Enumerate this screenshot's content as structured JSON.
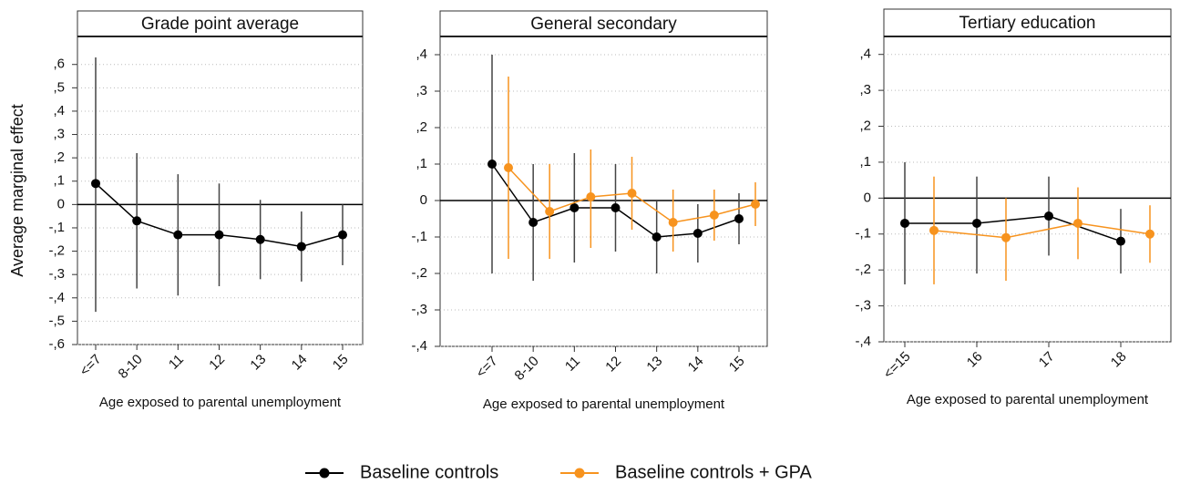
{
  "chart_data": [
    {
      "type": "errorbar",
      "title": "Grade point average",
      "ylabel": "Average marginal effect",
      "xlabel": "Age exposed to parental unemployment",
      "categories": [
        "<=7",
        "8-10",
        "11",
        "12",
        "13",
        "14",
        "15"
      ],
      "series": [
        {
          "name": "Baseline controls",
          "color": "#000000",
          "values": [
            0.09,
            -0.07,
            -0.13,
            -0.13,
            -0.15,
            -0.18,
            -0.13
          ],
          "lower": [
            -0.46,
            -0.36,
            -0.39,
            -0.35,
            -0.32,
            -0.33,
            -0.26
          ],
          "upper": [
            0.63,
            0.22,
            0.13,
            0.09,
            0.02,
            -0.03,
            0.0
          ]
        }
      ],
      "ylim": [
        -0.6,
        0.72
      ],
      "yticks": [
        {
          "value": -0.6,
          "label": "-,6"
        },
        {
          "value": -0.5,
          "label": "-,5"
        },
        {
          "value": -0.4,
          "label": "-,4"
        },
        {
          "value": -0.3,
          "label": "-,3"
        },
        {
          "value": -0.2,
          "label": "-,2"
        },
        {
          "value": -0.1,
          "label": "-,1"
        },
        0,
        {
          "value": 0.1,
          "label": ",1"
        },
        {
          "value": 0.2,
          "label": ",2"
        },
        {
          "value": 0.3,
          "label": ",3"
        },
        {
          "value": 0.4,
          "label": ",4"
        },
        {
          "value": 0.5,
          "label": ",5"
        },
        {
          "value": 0.6,
          "label": ",6"
        }
      ],
      "grid": true
    },
    {
      "type": "errorbar",
      "title": "General secondary",
      "xlabel": "Age exposed to parental unemployment",
      "categories": [
        "<=7",
        "8-10",
        "11",
        "12",
        "13",
        "14",
        "15"
      ],
      "series": [
        {
          "name": "Baseline controls",
          "color": "#000000",
          "values": [
            0.1,
            -0.06,
            -0.02,
            -0.02,
            -0.1,
            -0.09,
            -0.05
          ],
          "lower": [
            -0.2,
            -0.22,
            -0.17,
            -0.14,
            -0.2,
            -0.17,
            -0.12
          ],
          "upper": [
            0.4,
            0.1,
            0.13,
            0.1,
            0.0,
            -0.01,
            0.02
          ]
        },
        {
          "name": "Baseline controls + GPA",
          "color": "#f7931e",
          "values": [
            0.09,
            -0.03,
            0.01,
            0.02,
            -0.06,
            -0.04,
            -0.01
          ],
          "lower": [
            -0.16,
            -0.16,
            -0.13,
            -0.08,
            -0.14,
            -0.11,
            -0.07
          ],
          "upper": [
            0.34,
            0.1,
            0.14,
            0.12,
            0.03,
            0.03,
            0.05
          ]
        }
      ],
      "ylim": [
        -0.4,
        0.45
      ],
      "yticks": [
        {
          "value": -0.4,
          "label": "-,4"
        },
        {
          "value": -0.3,
          "label": "-,3"
        },
        {
          "value": -0.2,
          "label": "-,2"
        },
        {
          "value": -0.1,
          "label": "-,1"
        },
        0,
        {
          "value": 0.1,
          "label": ",1"
        },
        {
          "value": 0.2,
          "label": ",2"
        },
        {
          "value": 0.3,
          "label": ",3"
        },
        {
          "value": 0.4,
          "label": ",4"
        }
      ],
      "grid": true
    },
    {
      "type": "errorbar",
      "title": "Tertiary education",
      "xlabel": "Age exposed to parental unemployment",
      "categories": [
        "<=15",
        "16",
        "17",
        "18"
      ],
      "series": [
        {
          "name": "Baseline controls",
          "color": "#000000",
          "values": [
            -0.07,
            -0.07,
            -0.05,
            -0.12
          ],
          "lower": [
            -0.24,
            -0.21,
            -0.16,
            -0.21
          ],
          "upper": [
            0.1,
            0.06,
            0.06,
            -0.03
          ]
        },
        {
          "name": "Baseline controls + GPA",
          "color": "#f7931e",
          "values": [
            -0.09,
            -0.11,
            -0.07,
            -0.1
          ],
          "lower": [
            -0.24,
            -0.23,
            -0.17,
            -0.18
          ],
          "upper": [
            0.06,
            0.0,
            0.03,
            -0.02
          ]
        }
      ],
      "ylim": [
        -0.4,
        0.45
      ],
      "yticks": [
        {
          "value": -0.4,
          "label": "-,4"
        },
        {
          "value": -0.3,
          "label": "-,3"
        },
        {
          "value": -0.2,
          "label": "-,2"
        },
        {
          "value": -0.1,
          "label": "-,1"
        },
        0,
        {
          "value": 0.1,
          "label": ",1"
        },
        {
          "value": 0.2,
          "label": ",2"
        },
        {
          "value": 0.3,
          "label": ",3"
        },
        {
          "value": 0.4,
          "label": ",4"
        }
      ],
      "grid": true
    }
  ]
}
